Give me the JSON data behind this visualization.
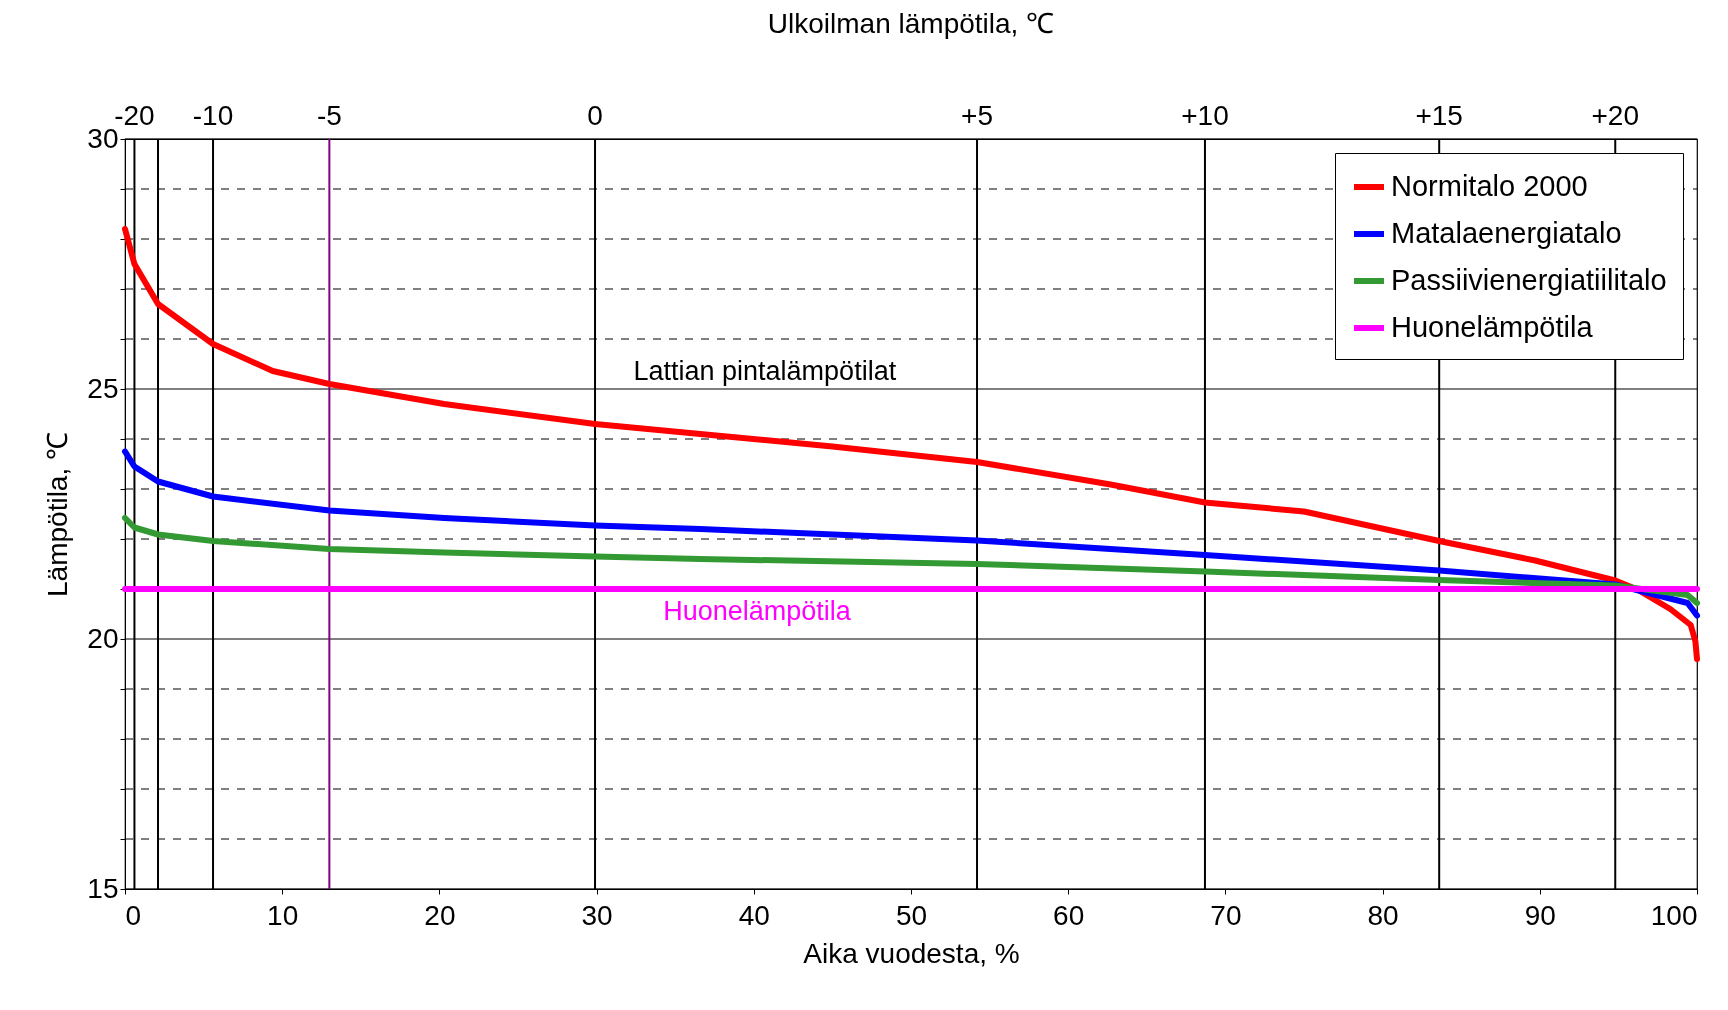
{
  "chart_data": {
    "type": "line",
    "title": "Ulkoilman lämpötila, ℃",
    "xlabel": "Aika vuodesta, %",
    "ylabel": "Lämpötila, ℃",
    "xlim": [
      0,
      100
    ],
    "xticks": [
      0,
      10,
      20,
      30,
      40,
      50,
      60,
      70,
      80,
      90,
      100
    ],
    "ylim": [
      15,
      30
    ],
    "yticks": [
      15,
      {
        "value": 16,
        "label": null
      },
      {
        "value": 17,
        "label": null
      },
      {
        "value": 18,
        "label": null
      },
      {
        "value": 19,
        "label": null
      },
      20,
      {
        "value": 21,
        "label": null
      },
      {
        "value": 22,
        "label": null
      },
      {
        "value": 23,
        "label": null
      },
      {
        "value": 24,
        "label": null
      },
      25,
      {
        "value": 26,
        "label": null
      },
      {
        "value": 27,
        "label": null
      },
      {
        "value": 28,
        "label": null
      },
      {
        "value": 29,
        "label": null
      },
      30
    ],
    "grid": "y",
    "legend": "top right",
    "line_style": "solid",
    "series": [
      {
        "name": "Normitalo 2000",
        "color": "#ff0000",
        "x": [
          0,
          0.6,
          2.1,
          5.6,
          9.4,
          13,
          20.3,
          29.9,
          36.6,
          45,
          54.2,
          62.7,
          68.7,
          75,
          83.6,
          89.7,
          94.8,
          96.2,
          98.3,
          99.6,
          99.9,
          100
        ],
        "values": [
          28.2,
          27.5,
          26.7,
          25.9,
          25.36,
          25.1,
          24.7,
          24.3,
          24.1,
          23.85,
          23.54,
          23.09,
          22.73,
          22.55,
          21.96,
          21.57,
          21.17,
          20.99,
          20.6,
          20.28,
          19.95,
          19.6
        ]
      },
      {
        "name": "Matalaenergiatalo",
        "color": "#0000ff",
        "x": [
          0,
          0.6,
          2.1,
          5.6,
          13,
          20.3,
          29.9,
          36.6,
          54.2,
          68.7,
          83.6,
          94.8,
          99.4,
          100
        ],
        "values": [
          23.75,
          23.45,
          23.15,
          22.85,
          22.57,
          22.42,
          22.27,
          22.2,
          21.97,
          21.68,
          21.37,
          21.09,
          20.72,
          20.47
        ]
      },
      {
        "name": "Passiivienergiatiilitalo",
        "color": "#339933",
        "x": [
          0,
          0.6,
          2.1,
          5.6,
          13,
          20.3,
          29.9,
          36.6,
          54.2,
          68.7,
          83.6,
          94.8,
          99.4,
          100
        ],
        "values": [
          22.42,
          22.23,
          22.09,
          21.96,
          21.8,
          21.73,
          21.65,
          21.6,
          21.5,
          21.35,
          21.18,
          21.07,
          20.88,
          20.72
        ]
      },
      {
        "name": "Huonelämpötila",
        "color": "#ff00ff",
        "x": [
          0,
          100
        ],
        "values": [
          21,
          21
        ]
      }
    ],
    "ref_lines": [
      {
        "axis": "x",
        "value": 0.6
      },
      {
        "axis": "x",
        "value": 2.1
      },
      {
        "axis": "x",
        "value": 5.6
      },
      {
        "axis": "x",
        "value": 13,
        "color": "#800080"
      },
      {
        "axis": "x",
        "value": 29.9
      },
      {
        "axis": "x",
        "value": 54.2
      },
      {
        "axis": "x",
        "value": 68.7
      },
      {
        "axis": "x",
        "value": 83.6
      },
      {
        "axis": "x",
        "value": 94.8
      }
    ],
    "annotations": [
      "Lattian pintalämpötilat",
      "Huonelämpötila",
      {
        "text": "-20",
        "x": 0.6,
        "y": 30
      },
      {
        "text": "-10",
        "x": 5.6,
        "y": 30
      },
      {
        "text": "-5",
        "x": 13,
        "y": 30
      },
      {
        "text": "0",
        "x": 29.9,
        "y": 30
      },
      {
        "text": "+5",
        "x": 54.2,
        "y": 30
      },
      {
        "text": "+10",
        "x": 68.7,
        "y": 30
      },
      {
        "text": "+15",
        "x": 83.6,
        "y": 30
      },
      {
        "text": "+20",
        "x": 94.8,
        "y": 30
      }
    ]
  }
}
